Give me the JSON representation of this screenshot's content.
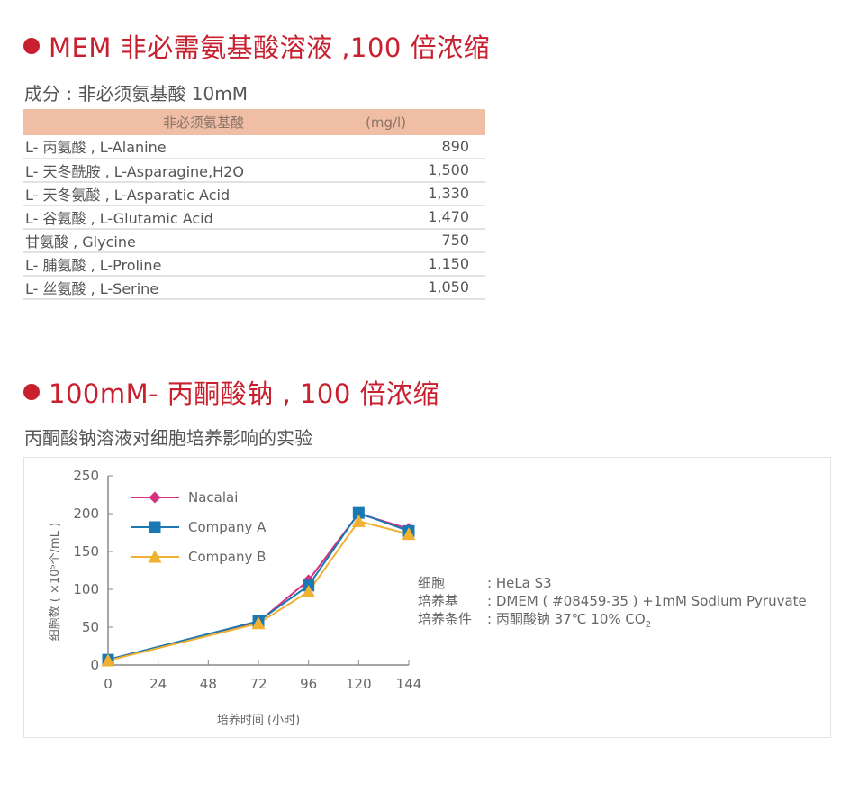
{
  "section1": {
    "title": "MEM 非必需氨基酸溶液 ,100 倍浓缩",
    "subtitle": "成分 : 非必须氨基酸 10mM",
    "table": {
      "headers": [
        "非必须氨基酸",
        "(mg/l)"
      ],
      "rows": [
        {
          "name": "L- 丙氨酸 , L-Alanine",
          "value": "890"
        },
        {
          "name": "L- 天冬酰胺 , L-Asparagine,H2O",
          "value": "1,500"
        },
        {
          "name": "L- 天冬氨酸 , L-Asparatic Acid",
          "value": "1,330"
        },
        {
          "name": "L- 谷氨酸 , L-Glutamic Acid",
          "value": "1,470"
        },
        {
          "name": "甘氨酸 , Glycine",
          "value": "750"
        },
        {
          "name": "L- 脯氨酸 , L-Proline",
          "value": "1,150"
        },
        {
          "name": "L- 丝氨酸 , L-Serine",
          "value": "1,050"
        }
      ]
    },
    "accent_color": "#c8202f",
    "header_color": "#efbea5"
  },
  "section2": {
    "title": "100mM- 丙酮酸钠 , 100 倍浓缩",
    "subtitle": "丙酮酸钠溶液对细胞培养影响的实验",
    "info": [
      {
        "key": "细胞",
        "value": ": HeLa S3"
      },
      {
        "key": "培养基",
        "value": ": DMEM ( #08459-35 ) +1mM Sodium Pyruvate"
      },
      {
        "key": "培养条件",
        "value": ": 丙酮酸钠 37℃ 10% CO",
        "sub": "2"
      }
    ]
  },
  "chart_data": {
    "type": "line",
    "title": "",
    "xlabel": "培养时间 (小时)",
    "ylabel": "细胞数 ( ×10⁵个/mL )",
    "x": [
      0,
      72,
      96,
      120,
      144
    ],
    "x_ticks": [
      0,
      24,
      48,
      72,
      96,
      120,
      144
    ],
    "y_ticks": [
      0,
      50,
      100,
      150,
      200,
      250
    ],
    "xlim": [
      0,
      144
    ],
    "ylim": [
      0,
      250
    ],
    "grid": false,
    "legend_position": "upper-left",
    "series": [
      {
        "name": "Nacalai",
        "color": "#d6307f",
        "marker": "diamond",
        "values": [
          7,
          57,
          112,
          200,
          180
        ]
      },
      {
        "name": "Company A",
        "color": "#1a78b4",
        "marker": "square",
        "values": [
          7,
          58,
          105,
          201,
          177
        ]
      },
      {
        "name": "Company B",
        "color": "#f0b030",
        "marker": "triangle",
        "values": [
          6,
          55,
          97,
          190,
          173
        ]
      }
    ]
  }
}
